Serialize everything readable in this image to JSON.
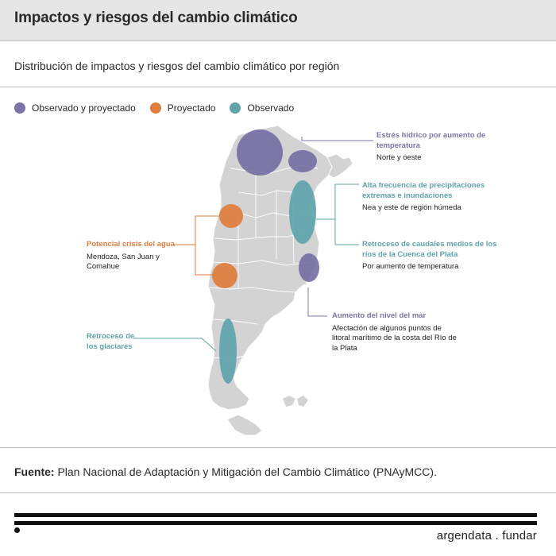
{
  "header": {
    "title": "Impactos y riesgos del cambio climático"
  },
  "subtitle": "Distribución de impactos y riesgos del cambio climático por región",
  "colors": {
    "observado_y_proyectado": "#7b74a8",
    "proyectado": "#e07d3c",
    "observado": "#5ea3ad",
    "map_fill": "#d3d3d3",
    "map_border": "#ffffff"
  },
  "legend": [
    {
      "label": "Observado y proyectado",
      "color": "#7b74a8"
    },
    {
      "label": "Proyectado",
      "color": "#e07d3c"
    },
    {
      "label": "Observado",
      "color": "#5ea3ad"
    }
  ],
  "annotations": {
    "estres": {
      "title": "Estrés hídrico por aumento de temperatura",
      "desc": "Norte y oeste",
      "category": "Observado y proyectado"
    },
    "precipitaciones": {
      "title": "Alta frecuencia de precipitaciones extremas e inundaciones",
      "desc": "Nea y este de región húmeda",
      "category": "Observado"
    },
    "caudales": {
      "title": "Retroceso de caudales medios de los ríos de la Cuenca del Plata",
      "desc": "Por aumento de temperatura",
      "category": "Observado"
    },
    "agua": {
      "title": "Potencial crisis del agua",
      "desc": "Mendoza, San Juan y Comahue",
      "category": "Proyectado"
    },
    "mar": {
      "title": "Aumento del nivel del mar",
      "desc": "Afectación de algunos puntos de litoral marítimo de la costa del Río de la Plata",
      "category": "Observado y proyectado"
    },
    "glaciares": {
      "title": "Retroceso de los glaciares",
      "desc": "",
      "category": "Observado"
    }
  },
  "source": {
    "label": "Fuente:",
    "text": " Plan Nacional de Adaptación y Mitigación del Cambio Climático (PNAyMCC)."
  },
  "footer": {
    "brand": "argendata . fundar"
  }
}
